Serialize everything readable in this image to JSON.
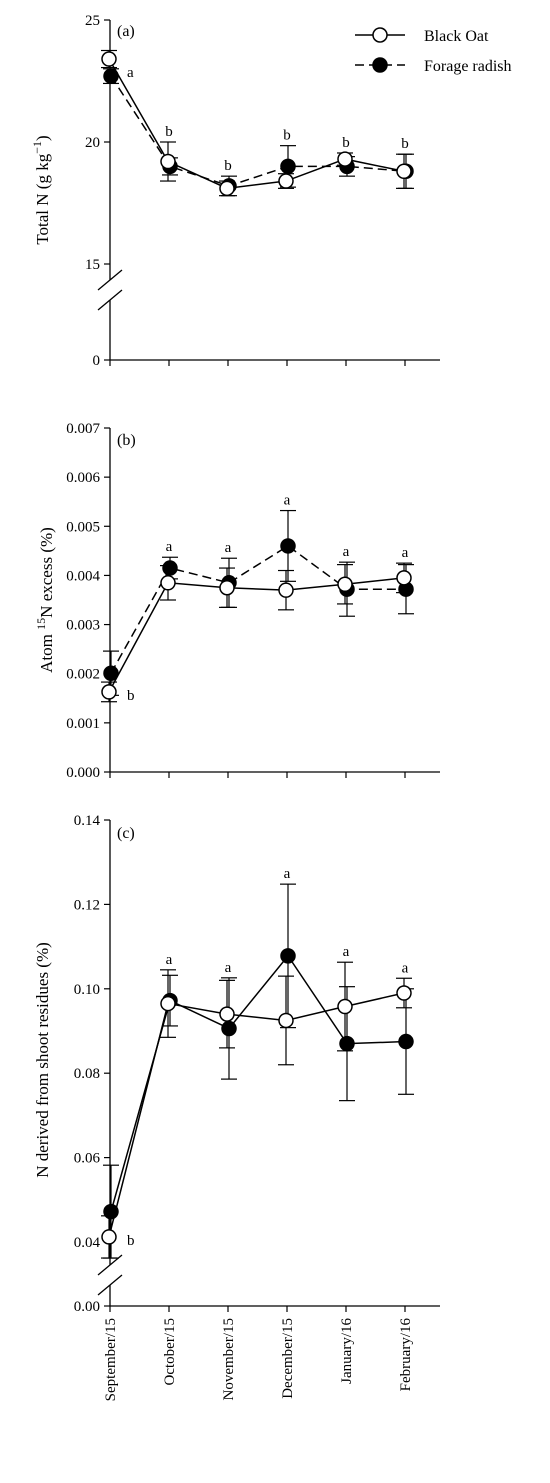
{
  "legend": {
    "black_oat": "Black Oat",
    "forage_radish": "Forage radish"
  },
  "chart_data": [
    {
      "type": "line",
      "panel": "(a)",
      "ylabel": "Total N (g kg",
      "ylabel_sup": "−1",
      "ylabel_close": ")",
      "categories": [
        "September/15",
        "October/15",
        "November/15",
        "December/15",
        "January/16",
        "February/16"
      ],
      "y_ticks": [
        0,
        15,
        20,
        25
      ],
      "y_tick_labels": [
        "0",
        "15",
        "20",
        "25"
      ],
      "axis_break": true,
      "series": [
        {
          "name": "Black Oat",
          "marker": "open-circle",
          "line": "solid",
          "values": [
            23.4,
            19.2,
            18.1,
            18.4,
            19.3,
            18.8
          ],
          "errors": [
            0.35,
            0.8,
            0.3,
            0.3,
            0.25,
            0.7
          ]
        },
        {
          "name": "Forage radish",
          "marker": "filled-circle",
          "line": "dashed",
          "values": [
            22.7,
            19.0,
            18.2,
            19.0,
            19.0,
            18.8
          ],
          "errors": [
            0.3,
            0.35,
            0.4,
            0.85,
            0.4,
            0.7
          ]
        }
      ],
      "letters": [
        "a",
        "b",
        "b",
        "b",
        "b",
        "b"
      ]
    },
    {
      "type": "line",
      "panel": "(b)",
      "ylabel": "Atom ",
      "ylabel_sup": "15",
      "ylabel_tail": "N excess (%)",
      "categories": [
        "September/15",
        "October/15",
        "November/15",
        "December/15",
        "January/16",
        "February/16"
      ],
      "y_ticks": [
        0.0,
        0.001,
        0.002,
        0.003,
        0.004,
        0.005,
        0.006,
        0.007
      ],
      "y_tick_labels": [
        "0.000",
        "0.001",
        "0.002",
        "0.003",
        "0.004",
        "0.005",
        "0.006",
        "0.007"
      ],
      "ylim": [
        0,
        0.007
      ],
      "series": [
        {
          "name": "Black Oat",
          "marker": "open-circle",
          "line": "solid",
          "values": [
            0.00163,
            0.00385,
            0.00375,
            0.0037,
            0.00382,
            0.00395
          ],
          "errors": [
            0.0002,
            0.00035,
            0.0004,
            0.0004,
            0.0004,
            0.0003
          ]
        },
        {
          "name": "Forage radish",
          "marker": "filled-circle",
          "line": "dashed",
          "values": [
            0.00201,
            0.00415,
            0.00385,
            0.0046,
            0.00372,
            0.00372
          ],
          "errors": [
            0.00045,
            0.00022,
            0.0005,
            0.00072,
            0.00055,
            0.0005
          ]
        }
      ],
      "letters": [
        "b",
        "a",
        "a",
        "a",
        "a",
        "a"
      ]
    },
    {
      "type": "line",
      "panel": "(c)",
      "ylabel": "N derived from shoot residues (%)",
      "categories": [
        "September/15",
        "October/15",
        "November/15",
        "December/15",
        "January/16",
        "February/16"
      ],
      "y_ticks": [
        0.0,
        0.04,
        0.06,
        0.08,
        0.1,
        0.12,
        0.14
      ],
      "y_tick_labels": [
        "0.00",
        "0.04",
        "0.06",
        "0.08",
        "0.10",
        "0.12",
        "0.14"
      ],
      "axis_break": true,
      "series": [
        {
          "name": "Black Oat",
          "marker": "open-circle",
          "line": "solid",
          "values": [
            0.0412,
            0.0965,
            0.094,
            0.0925,
            0.0958,
            0.099
          ],
          "errors": [
            0.005,
            0.008,
            0.008,
            0.0105,
            0.0105,
            0.0035
          ]
        },
        {
          "name": "Forage radish",
          "marker": "filled-circle",
          "line": "solid",
          "values": [
            0.0472,
            0.0972,
            0.0906,
            0.1078,
            0.087,
            0.0875
          ],
          "errors": [
            0.011,
            0.006,
            0.012,
            0.017,
            0.0135,
            0.0125
          ]
        }
      ],
      "letters": [
        "b",
        "a",
        "a",
        "a",
        "a",
        "a"
      ]
    }
  ]
}
